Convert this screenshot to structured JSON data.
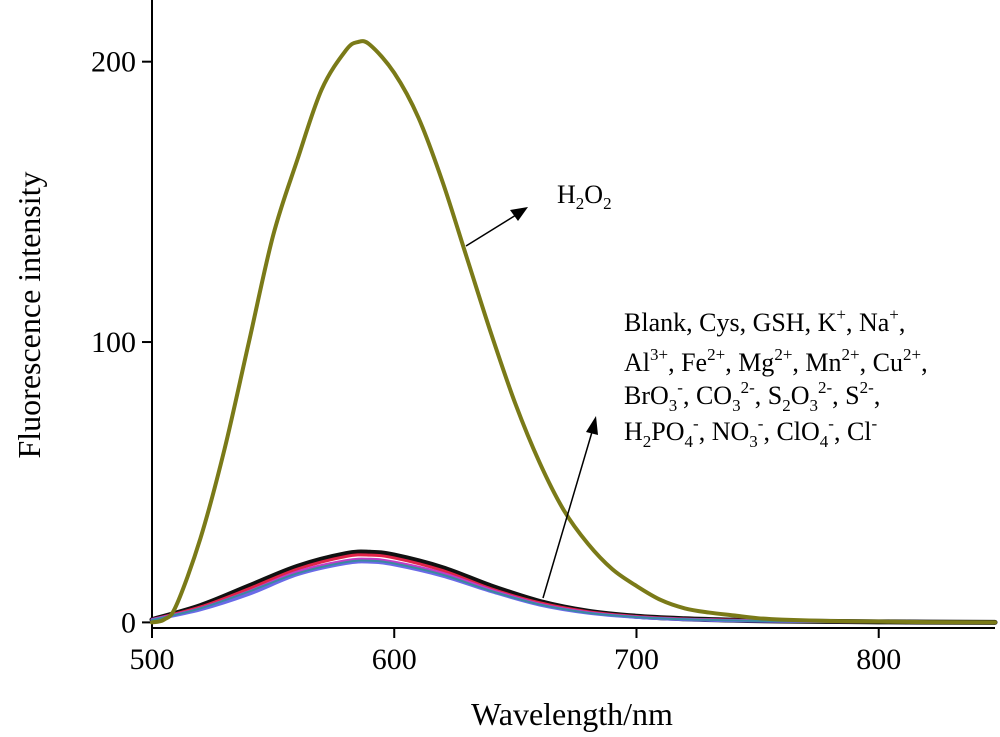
{
  "chart_data": {
    "type": "line",
    "xlabel": "Wavelength/nm",
    "ylabel": "Fluorescence intensity",
    "xlim": [
      500,
      848
    ],
    "ylim": [
      -2,
      222
    ],
    "x_ticks": [
      500,
      600,
      700,
      800
    ],
    "y_ticks": [
      0,
      100,
      200
    ],
    "x_tick_labels": [
      "500",
      "600",
      "700",
      "800"
    ],
    "y_tick_labels": [
      "0",
      "100",
      "200"
    ],
    "grid": false,
    "legend": "none",
    "annotation_h2o2": "H2O2",
    "annotation_group_lines": [
      "Blank, Cys, GSH, K+, Na+,",
      "Al3+, Fe2+, Mg2+, Mn2+, Cu2+,",
      "BrO3-, CO32-, S2O32-, S2-,",
      "H2PO4-, NO3-, ClO4-, Cl-"
    ],
    "series": [
      {
        "color": "#7a7a18",
        "stroke_width": 4,
        "x": [
          500,
          505,
          510,
          520,
          530,
          540,
          550,
          560,
          570,
          580,
          585,
          590,
          600,
          610,
          620,
          630,
          640,
          650,
          660,
          670,
          680,
          690,
          700,
          710,
          720,
          730,
          740,
          750,
          760,
          780,
          800,
          820,
          848
        ],
        "values": [
          0,
          1,
          6,
          30,
          62,
          100,
          138,
          165,
          190,
          204,
          207,
          206,
          196,
          180,
          157,
          130,
          103,
          78,
          57,
          40,
          28,
          19,
          13,
          8,
          5,
          3.5,
          2.5,
          1.5,
          1,
          0.5,
          0.3,
          0.1,
          0
        ]
      },
      {
        "color": "#111111",
        "stroke_width": 5,
        "x": [
          500,
          520,
          540,
          560,
          580,
          590,
          600,
          620,
          640,
          660,
          680,
          700,
          720,
          740,
          760,
          800,
          848
        ],
        "values": [
          1,
          6,
          13,
          20,
          24.5,
          25,
          24,
          19.5,
          13,
          7.5,
          4,
          2.2,
          1.3,
          0.8,
          0.5,
          0.2,
          0
        ]
      },
      {
        "color": "#e02448",
        "stroke_width": 3,
        "x": [
          500,
          520,
          540,
          560,
          580,
          590,
          600,
          620,
          640,
          660,
          680,
          700,
          720,
          740,
          760,
          800,
          848
        ],
        "values": [
          1,
          5.5,
          12,
          19,
          23.5,
          24,
          23,
          18.5,
          12,
          7,
          3.8,
          2.1,
          1.2,
          0.8,
          0.5,
          0.2,
          0
        ]
      },
      {
        "color": "#c03cc8",
        "stroke_width": 3,
        "x": [
          500,
          520,
          540,
          560,
          580,
          590,
          600,
          620,
          640,
          660,
          680,
          700,
          720,
          740,
          760,
          800,
          848
        ],
        "values": [
          1,
          5,
          11,
          18,
          22,
          22.5,
          21.5,
          17.5,
          11.5,
          6.5,
          3.5,
          1.9,
          1.1,
          0.7,
          0.4,
          0.2,
          0
        ]
      },
      {
        "color": "#6a6ae8",
        "stroke_width": 3,
        "x": [
          500,
          520,
          540,
          560,
          580,
          590,
          600,
          620,
          640,
          660,
          680,
          700,
          720,
          740,
          760,
          800,
          848
        ],
        "values": [
          0.8,
          4.5,
          10,
          17,
          21,
          21.5,
          20.5,
          16.5,
          11,
          6.2,
          3.3,
          1.8,
          1,
          0.6,
          0.4,
          0.2,
          0
        ]
      },
      {
        "color": "#3a8aa0",
        "stroke_width": 2,
        "x": [
          500,
          520,
          540,
          560,
          580,
          590,
          600,
          620,
          640,
          660,
          680,
          700,
          720,
          740,
          760,
          800,
          848
        ],
        "values": [
          0.8,
          5,
          11,
          17.5,
          21.5,
          22,
          21,
          17,
          11.2,
          6.4,
          3.4,
          1.9,
          1.1,
          0.7,
          0.4,
          0.2,
          0
        ]
      }
    ]
  }
}
